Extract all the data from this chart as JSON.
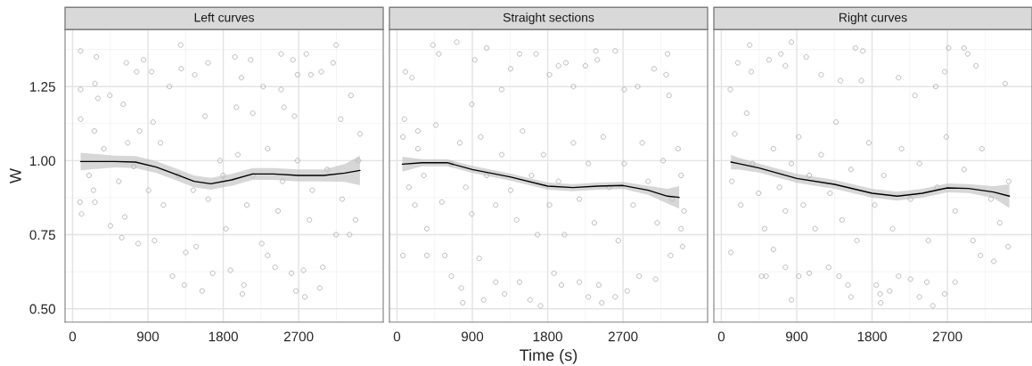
{
  "chart_data": [
    {
      "type": "scatter",
      "title": "Left curves",
      "ylabel": "W",
      "xlim": [
        -90,
        3710
      ],
      "ylim": [
        0.455,
        1.442
      ],
      "xticks": [
        0,
        900,
        1800,
        2700
      ],
      "yticks": [
        {
          "value": 0.5,
          "label": "0.50"
        },
        {
          "value": 0.75,
          "label": "0.75"
        },
        {
          "value": 1.0,
          "label": "1.00"
        },
        {
          "value": 1.25,
          "label": "1.25"
        }
      ],
      "grid": true,
      "series": [
        {
          "color": "#9a9a9a",
          "marker": "circle",
          "x": [
            96,
            96,
            96,
            107,
            89,
            285,
            267,
            302,
            260,
            249,
            267,
            445,
            452,
            605,
            641,
            658,
            623,
            587,
            765,
            847,
            783,
            800,
            943,
            961,
            978,
            1050,
            1157,
            1192,
            1291,
            1298,
            1334,
            1352,
            1459,
            1476,
            1547,
            1618,
            1583,
            1672,
            1761,
            1832,
            1939,
            1956,
            1885,
            2017,
            2028,
            2046,
            2127,
            2152,
            2081,
            2276,
            2259,
            2330,
            2419,
            2490,
            2490,
            2525,
            2454,
            2632,
            2614,
            2650,
            2686,
            2668,
            2792,
            2774,
            2757,
            2846,
            2828,
            2970,
            2952,
            2988,
            3112,
            3148,
            3201,
            3148,
            3325,
            3308,
            3432,
            3379,
            3414,
            196,
            374,
            551,
            729,
            907,
            1085,
            1263,
            1441,
            1619,
            1797,
            1974,
            2152,
            2330,
            2508,
            2686,
            2863,
            3041,
            3219
          ],
          "values": [
            1.37,
            1.24,
            1.14,
            0.82,
            0.86,
            1.35,
            1.26,
            1.21,
            1.1,
            0.9,
            0.86,
            1.22,
            0.78,
            1.19,
            1.33,
            1.06,
            0.81,
            0.74,
            1.3,
            1.34,
            0.72,
            1.1,
            1.3,
            1.13,
            0.73,
            1.06,
            1.25,
            0.61,
            1.39,
            1.31,
            0.58,
            0.69,
            1.29,
            0.71,
            0.56,
            1.33,
            1.15,
            0.62,
            1.0,
            0.77,
            1.35,
            1.18,
            0.63,
            1.28,
            0.55,
            0.58,
            1.34,
            1.16,
            0.85,
            1.25,
            0.72,
            0.68,
            0.64,
            1.36,
            1.24,
            1.18,
            0.83,
            1.34,
            0.62,
            1.15,
            1.29,
            0.56,
            1.36,
            0.54,
            0.63,
            1.29,
            0.8,
            1.3,
            0.57,
            0.64,
            1.33,
            1.39,
            1.14,
            0.75,
            1.22,
            0.75,
            1.09,
            0.8,
            1.0,
            0.95,
            1.04,
            0.93,
            0.98,
            0.9,
            0.85,
            0.95,
            0.9,
            0.87,
            0.95,
            1.02,
            0.95,
            1.04,
            0.93,
            1.0,
            0.9,
            0.97,
            0.87
          ]
        },
        {
          "type": "line",
          "color": "#000000",
          "marker": "none",
          "x": [
            96,
            500,
            750,
            1000,
            1250,
            1450,
            1650,
            1900,
            2150,
            2400,
            2700,
            3000,
            3250,
            3432
          ],
          "values": [
            0.997,
            0.997,
            0.995,
            0.978,
            0.952,
            0.93,
            0.922,
            0.935,
            0.955,
            0.955,
            0.95,
            0.95,
            0.958,
            0.967
          ],
          "lower": [
            0.967,
            0.977,
            0.975,
            0.958,
            0.932,
            0.91,
            0.902,
            0.915,
            0.935,
            0.935,
            0.93,
            0.93,
            0.928,
            0.917
          ],
          "upper": [
            1.027,
            1.017,
            1.015,
            0.998,
            0.972,
            0.95,
            0.942,
            0.955,
            0.975,
            0.975,
            0.97,
            0.97,
            0.988,
            1.017
          ]
        }
      ]
    },
    {
      "type": "scatter",
      "title": "Straight sections",
      "xlabel": "Time (s)",
      "xlim": [
        -90,
        3710
      ],
      "ylim": [
        0.455,
        1.442
      ],
      "xticks": [
        0,
        900,
        1800,
        2700
      ],
      "yticks": [
        0.5,
        0.75,
        1.0,
        1.25
      ],
      "grid": true,
      "tick_labels": "x",
      "series": [
        {
          "color": "#9a9a9a",
          "marker": "circle",
          "x": [
            71,
            89,
            100,
            179,
            250,
            214,
            357,
            357,
            429,
            500,
            571,
            650,
            714,
            768,
            786,
            893,
            929,
            982,
            1071,
            1036,
            1179,
            1250,
            1286,
            1357,
            1464,
            1464,
            1589,
            1661,
            1714,
            1821,
            1875,
            1929,
            2018,
            1964,
            2107,
            2178,
            2250,
            2286,
            2375,
            2393,
            2410,
            2446,
            2607,
            2607,
            2714,
            2750,
            2875,
            2893,
            3071,
            3089,
            3232,
            3214,
            3250,
            3268,
            3357,
            3411,
            3393,
            71,
            143,
            250,
            321,
            464,
            536,
            643,
            750,
            821,
            893,
            1000,
            1071,
            1179,
            1250,
            1357,
            1429,
            1500,
            1607,
            1679,
            1750,
            1821,
            1929,
            2000,
            2107,
            2178,
            2286,
            2357,
            2464,
            2536,
            2643,
            2714,
            2821,
            2929,
            3000,
            3107,
            3179,
            3286,
            3393,
            3429
          ],
          "values": [
            0.68,
            1.14,
            1.3,
            1.28,
            1.1,
            0.85,
            0.77,
            0.68,
            1.39,
            1.36,
            0.68,
            0.61,
            1.4,
            0.57,
            0.52,
            1.19,
            1.34,
            0.67,
            1.38,
            0.53,
            0.59,
            1.24,
            0.55,
            1.31,
            1.36,
            0.59,
            0.53,
            1.36,
            0.51,
            1.29,
            0.62,
            1.32,
            1.33,
            0.58,
            1.25,
            0.59,
            1.32,
            0.54,
            1.37,
            1.34,
            0.58,
            0.52,
            1.37,
            0.54,
            1.24,
            0.56,
            1.25,
            0.61,
            1.31,
            0.6,
            1.36,
            1.29,
            1.22,
            0.68,
            1.04,
            0.71,
            0.77,
            1.08,
            0.91,
            1.04,
            0.95,
            1.12,
            0.86,
            0.99,
            1.06,
            0.91,
            0.82,
            1.08,
            0.95,
            0.85,
            1.02,
            0.9,
            0.8,
            1.1,
            0.95,
            0.75,
            1.02,
            0.85,
            0.93,
            0.75,
            1.06,
            0.87,
            0.99,
            0.79,
            1.08,
            0.91,
            0.73,
            0.99,
            0.85,
            1.06,
            0.93,
            0.79,
            1.0,
            0.87,
            0.95,
            0.83
          ]
        },
        {
          "type": "line",
          "color": "#000000",
          "marker": "none",
          "x": [
            64,
            300,
            600,
            900,
            1350,
            1800,
            2100,
            2400,
            2700,
            3000,
            3230,
            3370
          ],
          "values": [
            0.988,
            0.993,
            0.993,
            0.97,
            0.945,
            0.914,
            0.909,
            0.914,
            0.916,
            0.9,
            0.88,
            0.876
          ],
          "lower": [
            0.963,
            0.981,
            0.981,
            0.958,
            0.933,
            0.902,
            0.897,
            0.902,
            0.904,
            0.885,
            0.855,
            0.838
          ],
          "upper": [
            1.013,
            1.005,
            1.005,
            0.982,
            0.957,
            0.926,
            0.921,
            0.926,
            0.928,
            0.915,
            0.905,
            0.914
          ]
        }
      ]
    },
    {
      "type": "scatter",
      "title": "Right curves",
      "xlim": [
        -90,
        3710
      ],
      "ylim": [
        0.455,
        1.442
      ],
      "xticks": [
        0,
        900,
        1800,
        2700
      ],
      "yticks": [
        0.5,
        0.75,
        1.0,
        1.25
      ],
      "grid": true,
      "tick_labels": "x",
      "series": [
        {
          "color": "#9a9a9a",
          "marker": "circle",
          "x": [
            107,
            114,
            196,
            338,
            356,
            480,
            534,
            569,
            711,
            765,
            622,
            765,
            836,
            836,
            925,
            1014,
            1049,
            1192,
            1281,
            1405,
            1423,
            1512,
            1547,
            1601,
            1690,
            1672,
            1850,
            1896,
            1903,
            2010,
            2116,
            2116,
            2259,
            2312,
            2365,
            2454,
            2525,
            2561,
            2668,
            2668,
            2714,
            2792,
            2899,
            2942,
            3041,
            3094,
            3254,
            3390,
            3425,
            125,
            160,
            231,
            302,
            374,
            445,
            516,
            622,
            694,
            765,
            836,
            925,
            978,
            1049,
            1120,
            1192,
            1298,
            1370,
            1441,
            1547,
            1618,
            1761,
            1832,
            1939,
            2045,
            2152,
            2259,
            2365,
            2472,
            2579,
            2686,
            2792,
            2899,
            3005,
            3112,
            3219,
            3325,
            3432
          ],
          "values": [
            1.24,
            0.69,
            1.33,
            1.39,
            1.3,
            0.61,
            0.61,
            1.34,
            1.36,
            1.32,
            0.7,
            0.64,
            1.4,
            0.53,
            0.61,
            1.35,
            0.62,
            1.29,
            0.64,
            0.61,
            1.27,
            0.58,
            0.54,
            1.38,
            1.37,
            1.27,
            0.58,
            0.55,
            0.52,
            0.56,
            1.28,
            0.61,
            0.6,
            1.22,
            0.54,
            0.59,
            0.51,
            1.25,
            1.3,
            0.55,
            1.38,
            0.59,
            1.38,
            1.36,
            1.32,
            0.68,
            0.66,
            1.26,
            0.71,
            0.93,
            1.09,
            0.85,
            1.16,
            0.99,
            0.89,
            0.77,
            1.04,
            0.91,
            0.83,
            0.99,
            1.08,
            0.85,
            0.95,
            0.77,
            1.02,
            0.89,
            1.13,
            0.8,
            0.97,
            0.73,
            1.06,
            0.85,
            0.95,
            0.77,
            1.04,
            0.87,
            0.99,
            0.73,
            0.91,
            1.08,
            0.83,
            0.97,
            0.73,
            1.04,
            0.87,
            0.79,
            0.93
          ]
        },
        {
          "type": "line",
          "color": "#000000",
          "marker": "none",
          "x": [
            114,
            200,
            450,
            900,
            1350,
            1800,
            2100,
            2400,
            2700,
            2950,
            3250,
            3440
          ],
          "values": [
            0.995,
            0.99,
            0.975,
            0.94,
            0.92,
            0.89,
            0.88,
            0.89,
            0.908,
            0.906,
            0.894,
            0.88
          ],
          "lower": [
            0.97,
            0.97,
            0.96,
            0.925,
            0.905,
            0.875,
            0.865,
            0.875,
            0.893,
            0.891,
            0.874,
            0.84
          ],
          "upper": [
            1.02,
            1.01,
            0.99,
            0.955,
            0.935,
            0.905,
            0.895,
            0.905,
            0.923,
            0.921,
            0.914,
            0.92
          ]
        }
      ]
    }
  ]
}
